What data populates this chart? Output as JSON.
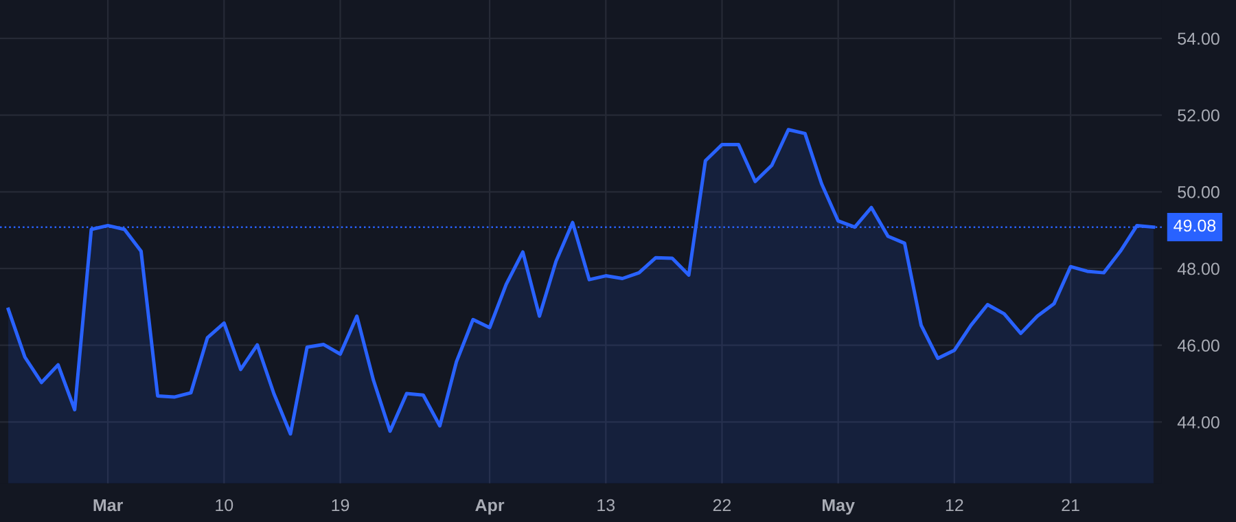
{
  "chart_data": {
    "type": "area",
    "categories": [
      null,
      null,
      null,
      null,
      null,
      null,
      "Mar",
      null,
      null,
      null,
      null,
      null,
      null,
      "10",
      null,
      null,
      null,
      null,
      null,
      null,
      "19",
      null,
      null,
      null,
      null,
      null,
      null,
      null,
      null,
      "Apr",
      null,
      null,
      null,
      null,
      null,
      null,
      "13",
      null,
      null,
      null,
      null,
      null,
      null,
      "22",
      null,
      null,
      null,
      null,
      null,
      null,
      "May",
      null,
      null,
      null,
      null,
      null,
      null,
      "12",
      null,
      null,
      null,
      null,
      null,
      null,
      "21",
      null,
      null,
      null,
      null,
      null
    ],
    "series": [
      {
        "color": "#2962ff",
        "values": [
          46.94,
          45.69,
          45.03,
          45.49,
          44.32,
          49.02,
          49.12,
          49.02,
          48.45,
          44.68,
          44.65,
          44.76,
          46.2,
          46.58,
          45.37,
          46.01,
          44.74,
          43.69,
          45.95,
          46.02,
          45.77,
          46.76,
          45.09,
          43.76,
          44.74,
          44.7,
          43.9,
          45.57,
          46.67,
          46.46,
          47.59,
          48.43,
          46.76,
          48.19,
          49.2,
          47.71,
          47.81,
          47.74,
          47.89,
          48.28,
          48.27,
          47.83,
          50.81,
          51.23,
          51.23,
          50.27,
          50.69,
          51.62,
          51.52,
          50.21,
          49.24,
          49.08,
          49.59,
          48.84,
          48.66,
          46.52,
          45.66,
          45.87,
          46.52,
          47.06,
          46.82,
          46.31,
          46.76,
          47.08,
          48.05,
          47.93,
          47.89,
          48.45,
          49.12,
          49.08
        ]
      }
    ],
    "ylim": [
      42.4,
      55.0
    ],
    "yticks": [
      {
        "value": 44,
        "label": "44.00"
      },
      {
        "value": 46,
        "label": "46.00"
      },
      {
        "value": 48,
        "label": "48.00"
      },
      {
        "value": 50,
        "label": "50.00"
      },
      {
        "value": 52,
        "label": "52.00"
      },
      {
        "value": 54,
        "label": "54.00"
      }
    ],
    "ref_lines": [
      {
        "axis": "y",
        "value": 49.08,
        "label": "49.08",
        "color": "#2962ff",
        "line_style": "dotted"
      }
    ],
    "grid": true,
    "legend": false
  }
}
